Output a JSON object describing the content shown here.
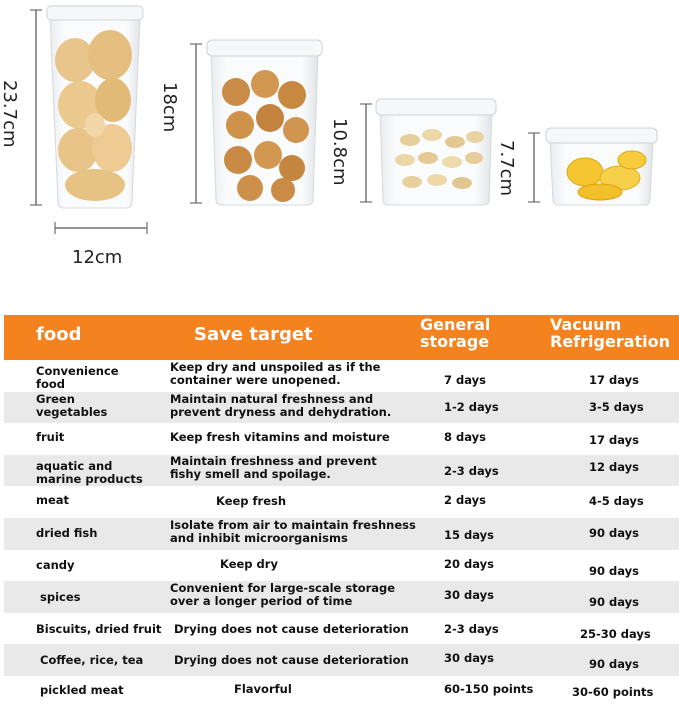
{
  "dimensions": {
    "jar1_height": "23.7cm",
    "jar1_width": "12cm",
    "jar2_height": "18cm",
    "jar3_height": "10.8cm",
    "jar4_height": "7.7cm"
  },
  "table": {
    "headers": {
      "food": "food",
      "save_target": "Save target",
      "general": "General\nstorage",
      "vacuum": "Vacuum\nRefrigeration"
    },
    "rows": [
      {
        "food": "Convenience\nfood",
        "target": "Keep dry and unspoiled as if the\ncontainer were unopened.",
        "general": "7 days",
        "vacuum": "17 days"
      },
      {
        "food": "Green\nvegetables",
        "target": "Maintain natural freshness and\nprevent dryness and dehydration.",
        "general": "1-2 days",
        "vacuum": "3-5 days"
      },
      {
        "food": "fruit",
        "target": "Keep fresh vitamins and moisture",
        "general": "8 days",
        "vacuum": "17 days"
      },
      {
        "food": "aquatic and\nmarine products",
        "target": "Maintain freshness and prevent\nfishy smell and spoilage.",
        "general": "2-3 days",
        "vacuum": "12 days"
      },
      {
        "food": "meat",
        "target": "Keep fresh",
        "general": "2 days",
        "vacuum": "4-5 days"
      },
      {
        "food": "dried fish",
        "target": "Isolate from air to maintain freshness\nand inhibit microorganisms",
        "general": "15 days",
        "vacuum": "90 days"
      },
      {
        "food": "candy",
        "target": "Keep dry",
        "general": "20 days",
        "vacuum": "90 days"
      },
      {
        "food": "spices",
        "target": "Convenient for large-scale storage\nover a longer period of time",
        "general": "30 days",
        "vacuum": "90 days"
      },
      {
        "food": "Biscuits, dried fruit",
        "target": "Drying does not cause deterioration",
        "general": "2-3 days",
        "vacuum": "25-30 days"
      },
      {
        "food": "Coffee, rice, tea",
        "target": "Drying does not cause deterioration",
        "general": "30 days",
        "vacuum": "90 days"
      },
      {
        "food": "pickled meat",
        "target": "Flavorful",
        "general": "60-150 points",
        "vacuum": "30-60 points"
      }
    ]
  }
}
